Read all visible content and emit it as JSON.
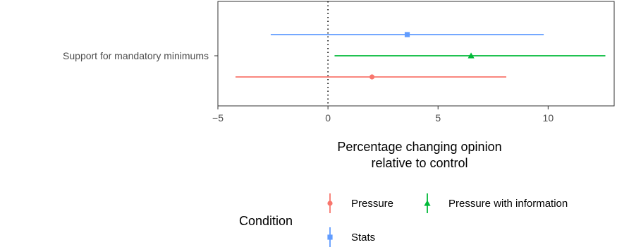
{
  "chart_data": {
    "type": "errorbar",
    "category": "Support for mandatory minimums",
    "xlabel_lines": [
      "Percentage changing opinion",
      "relative to control"
    ],
    "ylabel": "",
    "xlim": [
      -5,
      13
    ],
    "xticks": [
      {
        "value": -5,
        "label": "−5"
      },
      {
        "value": 0,
        "label": "0"
      },
      {
        "value": 5,
        "label": "5"
      },
      {
        "value": 10,
        "label": "10"
      }
    ],
    "reference_line": {
      "value": 0,
      "style": "dotted"
    },
    "grid": false,
    "legend": {
      "title": "Condition",
      "placement": "bottom"
    },
    "series": [
      {
        "name": "Stats",
        "estimate": 3.6,
        "low": -2.6,
        "high": 9.8,
        "color": "#619CFF",
        "marker": "square"
      },
      {
        "name": "Pressure with information",
        "estimate": 6.5,
        "low": 0.3,
        "high": 12.6,
        "color": "#00BA38",
        "marker": "triangle"
      },
      {
        "name": "Pressure",
        "estimate": 2.0,
        "low": -4.2,
        "high": 8.1,
        "color": "#F8766D",
        "marker": "circle"
      }
    ]
  }
}
